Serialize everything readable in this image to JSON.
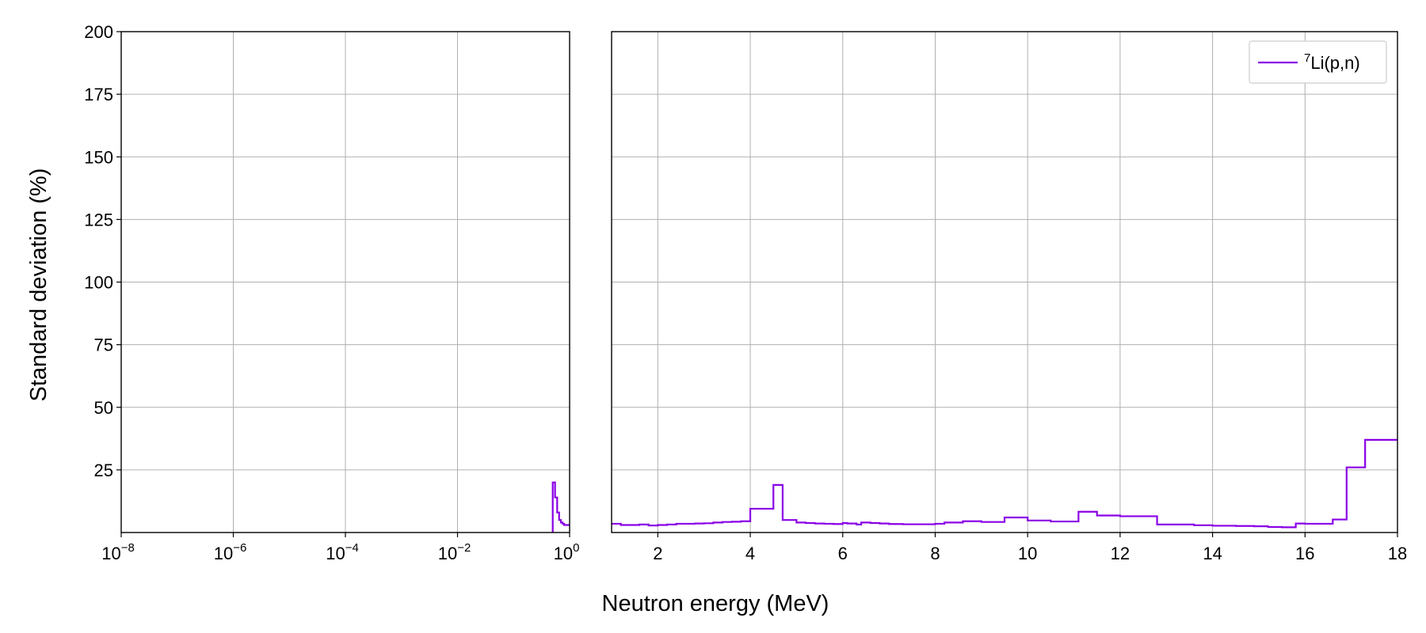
{
  "chart_data": {
    "type": "line",
    "step": true,
    "ylabel": "Standard deviation (%)",
    "xlabel": "Neutron energy (MeV)",
    "ylim": [
      0,
      200
    ],
    "y_ticks": [
      "200",
      "175",
      "150",
      "125",
      "100",
      "75",
      "50",
      "25"
    ],
    "grid": true,
    "legend_position": "top-right",
    "panels": [
      {
        "name": "left",
        "xscale": "log",
        "xlim": [
          1e-08,
          1
        ],
        "x_ticks": [
          {
            "base": "10",
            "exp": "−8"
          },
          {
            "base": "10",
            "exp": "−6"
          },
          {
            "base": "10",
            "exp": "−4"
          },
          {
            "base": "10",
            "exp": "−2"
          },
          {
            "base": "10",
            "exp": "0"
          }
        ],
        "x": [
          0.5,
          0.55,
          0.6,
          0.65,
          0.7,
          0.75,
          0.8,
          0.85,
          0.9,
          1.0
        ],
        "y": [
          20,
          14,
          8,
          5,
          4,
          3.5,
          3,
          3,
          3,
          3
        ]
      },
      {
        "name": "right",
        "xscale": "linear",
        "xlim": [
          1,
          18
        ],
        "x_ticks": [
          "2",
          "4",
          "6",
          "8",
          "10",
          "12",
          "14",
          "16",
          "18"
        ],
        "x": [
          1.0,
          1.2,
          1.4,
          1.6,
          1.8,
          2.0,
          2.2,
          2.4,
          2.6,
          2.8,
          3.0,
          3.2,
          3.4,
          3.6,
          3.8,
          4.0,
          4.5,
          4.7,
          5.0,
          5.2,
          5.4,
          5.6,
          5.8,
          6.0,
          6.1,
          6.3,
          6.4,
          6.6,
          6.8,
          7.0,
          7.3,
          7.6,
          8.0,
          8.2,
          8.6,
          9.0,
          9.5,
          10.0,
          10.5,
          11.1,
          11.5,
          12.0,
          12.5,
          12.8,
          13.2,
          13.6,
          14.0,
          14.5,
          14.9,
          15.2,
          15.5,
          15.8,
          16.0,
          16.3,
          16.6,
          16.8,
          16.9,
          17.3,
          17.6,
          18.0
        ],
        "y": [
          3.5,
          3.0,
          3.0,
          3.2,
          2.8,
          3.0,
          3.2,
          3.5,
          3.5,
          3.6,
          3.7,
          4.0,
          4.2,
          4.3,
          4.5,
          9.5,
          19.0,
          5.0,
          4.0,
          3.8,
          3.6,
          3.5,
          3.4,
          3.8,
          3.6,
          3.2,
          4.0,
          3.8,
          3.6,
          3.4,
          3.3,
          3.3,
          3.5,
          4.0,
          4.5,
          4.2,
          6.0,
          4.8,
          4.4,
          8.3,
          6.8,
          6.5,
          6.5,
          3.2,
          3.2,
          2.9,
          2.7,
          2.6,
          2.5,
          2.2,
          2.1,
          3.6,
          3.5,
          3.5,
          5.2,
          5.2,
          26.0,
          37.0,
          37.0,
          37.0
        ],
        "series_name": "⁷Li(p,n)",
        "series_color": "#8a00e6"
      }
    ],
    "legend": [
      {
        "label_sup": "7",
        "label_main": "Li(p,n)",
        "color": "#8a00e6"
      }
    ]
  }
}
